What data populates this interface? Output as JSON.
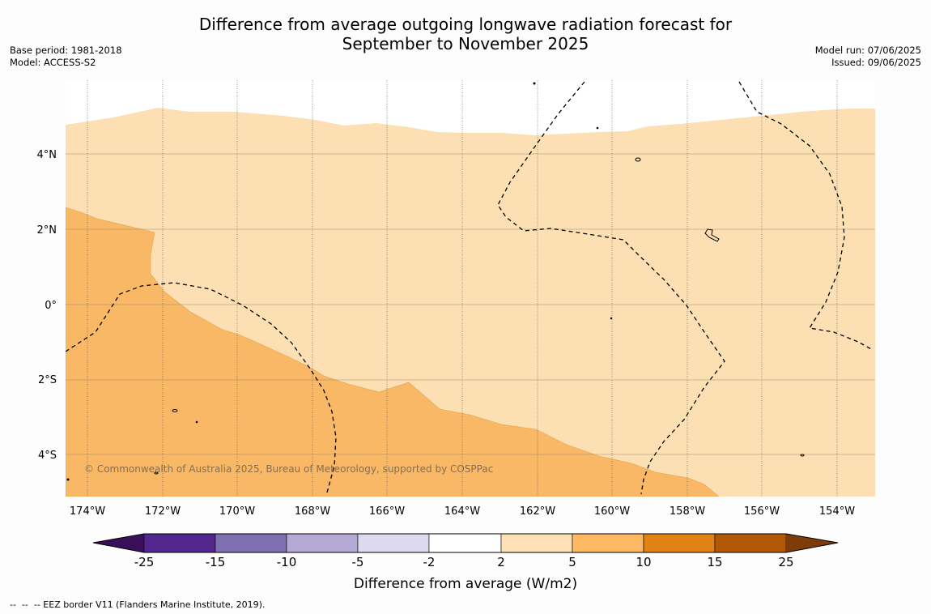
{
  "title": {
    "line1": "Difference from average outgoing longwave radiation forecast for",
    "line2": "September to November 2025"
  },
  "meta_left": {
    "base_period": "Base period: 1981-2018",
    "model": "Model: ACCESS-S2"
  },
  "meta_right": {
    "model_run": "Model run: 07/06/2025",
    "issued": "Issued: 09/06/2025"
  },
  "map": {
    "x_ticks": [
      "174°W",
      "172°W",
      "170°W",
      "168°W",
      "166°W",
      "164°W",
      "162°W",
      "160°W",
      "158°W",
      "156°W",
      "154°W"
    ],
    "y_ticks": [
      "4°N",
      "2°N",
      "0°",
      "2°S",
      "4°S"
    ],
    "copyright": "© Commonwealth of Australia 2025, Bureau of Meteorology, supported by COSPPac",
    "colors": {
      "light_orange": "#fce0b4",
      "mid_orange": "#f9b865",
      "border": "#000000"
    }
  },
  "colorbar": {
    "label": "Difference from average (W/m2)",
    "ticks": [
      "-25",
      "-15",
      "-10",
      "-5",
      "-2",
      "2",
      "5",
      "10",
      "15",
      "25"
    ],
    "colors": [
      "#3a0f5a",
      "#54278f",
      "#7d6fb0",
      "#b4a9d5",
      "#dcdaee",
      "#ffffff",
      "#fee0b6",
      "#fdb863",
      "#e08214",
      "#b35806",
      "#7f3b08"
    ]
  },
  "footnote": "--  --  -- EEZ border V11 (Flanders Marine Institute, 2019)."
}
